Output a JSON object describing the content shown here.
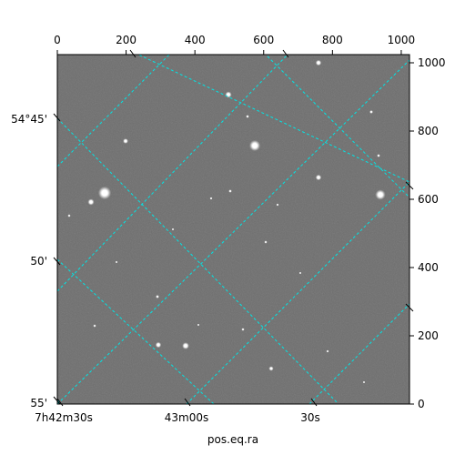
{
  "chart_data": {
    "type": "image",
    "xlabel": "pos.eq.ra",
    "ylabel": "",
    "pixel_x_axis": {
      "range": [
        0,
        1024
      ],
      "ticks": [
        0,
        200,
        400,
        600,
        800,
        1000
      ],
      "labels": [
        "0",
        "200",
        "400",
        "600",
        "800",
        "1000"
      ]
    },
    "pixel_y_axis": {
      "range": [
        0,
        1024
      ],
      "ticks": [
        0,
        200,
        400,
        600,
        800,
        1000
      ],
      "labels": [
        "0",
        "200",
        "400",
        "600",
        "800",
        "1000"
      ]
    },
    "ra_axis": {
      "labels": [
        "7h42m30s",
        "43m00s",
        "30s"
      ]
    },
    "dec_axis": {
      "labels": [
        "54°45'",
        "50'",
        "55'"
      ]
    },
    "grid": true,
    "colors": {
      "grid": "#00e5e5",
      "image_background": "#6e6e6e"
    }
  }
}
